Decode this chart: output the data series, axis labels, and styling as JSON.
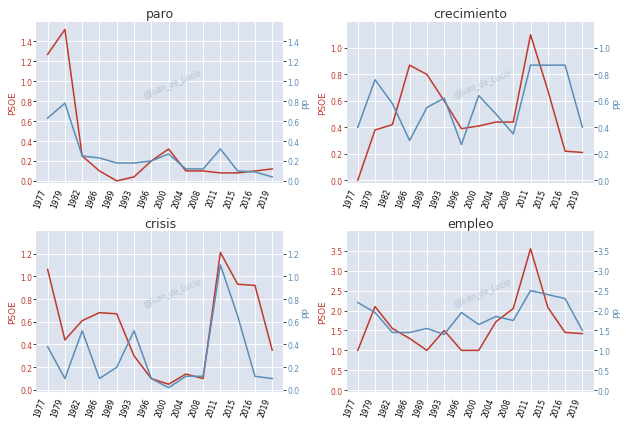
{
  "years": [
    1977,
    1979,
    1982,
    1986,
    1989,
    1993,
    1996,
    2000,
    2004,
    2008,
    2011,
    2015,
    2016,
    2019
  ],
  "paro": {
    "psoe": [
      1.27,
      1.52,
      0.25,
      0.1,
      0.0,
      0.04,
      0.2,
      0.32,
      0.1,
      0.1,
      0.08,
      0.08,
      0.1,
      0.12
    ],
    "pp": [
      0.63,
      0.78,
      0.25,
      0.23,
      0.18,
      0.18,
      0.2,
      0.27,
      0.12,
      0.12,
      0.32,
      0.1,
      0.09,
      0.04
    ]
  },
  "crecimiento": {
    "psoe": [
      0.0,
      0.38,
      0.42,
      0.87,
      0.8,
      0.6,
      0.39,
      0.41,
      0.44,
      0.44,
      1.1,
      0.68,
      0.22,
      0.21
    ],
    "pp": [
      0.4,
      0.76,
      0.58,
      0.3,
      0.55,
      0.62,
      0.27,
      0.64,
      0.5,
      0.35,
      0.87,
      0.87,
      0.87,
      0.4
    ]
  },
  "crisis": {
    "psoe": [
      1.06,
      0.44,
      0.61,
      0.68,
      0.67,
      0.3,
      0.1,
      0.05,
      0.14,
      0.1,
      1.21,
      0.93,
      0.92,
      0.35
    ],
    "pp": [
      0.38,
      0.1,
      0.52,
      0.1,
      0.2,
      0.52,
      0.1,
      0.02,
      0.12,
      0.12,
      1.1,
      0.65,
      0.12,
      0.1
    ]
  },
  "empleo": {
    "psoe": [
      1.0,
      2.1,
      1.55,
      1.3,
      1.0,
      1.5,
      1.0,
      1.0,
      1.72,
      2.05,
      3.55,
      2.08,
      1.45,
      1.42
    ],
    "pp": [
      2.2,
      1.95,
      1.45,
      1.45,
      1.55,
      1.4,
      1.95,
      1.65,
      1.85,
      1.75,
      2.5,
      2.4,
      2.3,
      1.5
    ]
  },
  "colors": {
    "psoe": "#c0392b",
    "pp": "#5b8db8"
  },
  "bg_color": "#dde3ee",
  "fig_bg": "#ffffff",
  "outer_bg": "#f0f0f0",
  "watermark": "@Juan_de_Lucio",
  "watermark_color": "#b0b8c8",
  "ylims": {
    "paro": [
      -0.02,
      1.6
    ],
    "crecimiento": [
      -0.02,
      1.2
    ],
    "crisis": [
      -0.02,
      1.4
    ],
    "empleo": [
      -0.05,
      4.0
    ]
  },
  "yticks": {
    "paro": [
      0.0,
      0.2,
      0.4,
      0.6,
      0.8,
      1.0,
      1.2,
      1.4
    ],
    "crecimiento": [
      0.0,
      0.2,
      0.4,
      0.6,
      0.8,
      1.0
    ],
    "crisis": [
      0.0,
      0.2,
      0.4,
      0.6,
      0.8,
      1.0,
      1.2
    ],
    "empleo": [
      0.0,
      0.5,
      1.0,
      1.5,
      2.0,
      2.5,
      3.0,
      3.5
    ]
  }
}
